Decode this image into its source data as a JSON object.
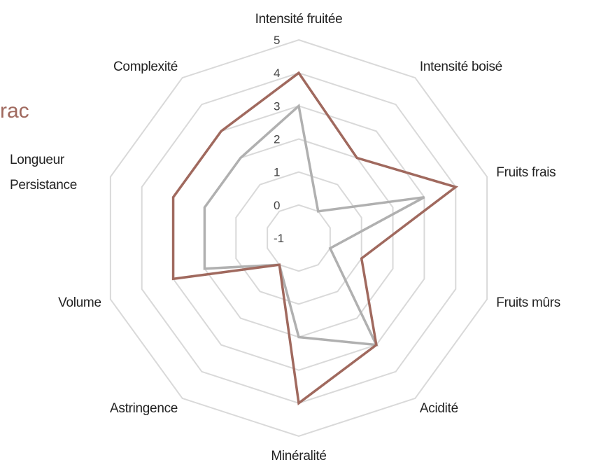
{
  "chart_data": {
    "type": "radar",
    "subtitle": "rac",
    "categories": [
      "Intensité fruitée",
      "Intensité boisé",
      "Fruits frais",
      "Fruits mûrs",
      "Acidité",
      "Minéralité",
      "Astringence",
      "Volume",
      "Longueur Persistance",
      "Complexité"
    ],
    "series": [
      {
        "color": "#b0b0b0",
        "values": [
          3,
          0,
          3,
          0,
          3,
          2,
          0,
          2,
          2,
          2
        ]
      },
      {
        "color": "#a0695e",
        "values": [
          4,
          2,
          4,
          1,
          3,
          4,
          0,
          3,
          3,
          3
        ]
      }
    ],
    "ylim": [
      -1,
      5
    ],
    "yticks": [
      -1,
      0,
      1,
      2,
      3,
      4,
      5
    ],
    "grid": true,
    "grid_color": "#d9d9d9"
  }
}
